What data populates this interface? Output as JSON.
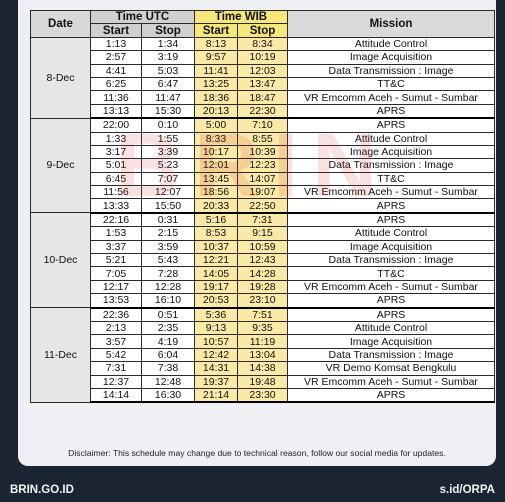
{
  "headers": {
    "date": "Date",
    "time_utc": "Time UTC",
    "time_wib": "Time WIB",
    "mission": "Mission",
    "start": "Start",
    "stop": "Stop"
  },
  "groups": [
    {
      "date": "8-Dec",
      "rows": [
        {
          "utc_start": "1:13",
          "utc_stop": "1:34",
          "wib_start": "8:13",
          "wib_stop": "8:34",
          "mission": "Attitude Control"
        },
        {
          "utc_start": "2:57",
          "utc_stop": "3:19",
          "wib_start": "9:57",
          "wib_stop": "10:19",
          "mission": "Image Acquisition"
        },
        {
          "utc_start": "4:41",
          "utc_stop": "5:03",
          "wib_start": "11:41",
          "wib_stop": "12:03",
          "mission": "Data Transmission : Image"
        },
        {
          "utc_start": "6:25",
          "utc_stop": "6:47",
          "wib_start": "13:25",
          "wib_stop": "13:47",
          "mission": "TT&C"
        },
        {
          "utc_start": "11:36",
          "utc_stop": "11:47",
          "wib_start": "18:36",
          "wib_stop": "18:47",
          "mission": "VR Emcomm Aceh - Sumut - Sumbar"
        },
        {
          "utc_start": "13:13",
          "utc_stop": "15:30",
          "wib_start": "20:13",
          "wib_stop": "22:30",
          "mission": "APRS"
        }
      ]
    },
    {
      "date": "9-Dec",
      "rows": [
        {
          "utc_start": "22:00",
          "utc_stop": "0:10",
          "wib_start": "5:00",
          "wib_stop": "7:10",
          "mission": "APRS"
        },
        {
          "utc_start": "1:33",
          "utc_stop": "1:55",
          "wib_start": "8:33",
          "wib_stop": "8:55",
          "mission": "Attitude Control"
        },
        {
          "utc_start": "3:17",
          "utc_stop": "3:39",
          "wib_start": "10:17",
          "wib_stop": "10:39",
          "mission": "Image Acquisition"
        },
        {
          "utc_start": "5:01",
          "utc_stop": "5:23",
          "wib_start": "12:01",
          "wib_stop": "12:23",
          "mission": "Data Transmission : Image"
        },
        {
          "utc_start": "6:45",
          "utc_stop": "7:07",
          "wib_start": "13:45",
          "wib_stop": "14:07",
          "mission": "TT&C"
        },
        {
          "utc_start": "11:56",
          "utc_stop": "12:07",
          "wib_start": "18:56",
          "wib_stop": "19:07",
          "mission": "VR Emcomm Aceh - Sumut - Sumbar"
        },
        {
          "utc_start": "13:33",
          "utc_stop": "15:50",
          "wib_start": "20:33",
          "wib_stop": "22:50",
          "mission": "APRS"
        }
      ]
    },
    {
      "date": "10-Dec",
      "rows": [
        {
          "utc_start": "22:16",
          "utc_stop": "0:31",
          "wib_start": "5:16",
          "wib_stop": "7:31",
          "mission": "APRS"
        },
        {
          "utc_start": "1:53",
          "utc_stop": "2:15",
          "wib_start": "8:53",
          "wib_stop": "9:15",
          "mission": "Attitude Control"
        },
        {
          "utc_start": "3:37",
          "utc_stop": "3:59",
          "wib_start": "10:37",
          "wib_stop": "10:59",
          "mission": "Image Acquisition"
        },
        {
          "utc_start": "5:21",
          "utc_stop": "5:43",
          "wib_start": "12:21",
          "wib_stop": "12:43",
          "mission": "Data Transmission : Image"
        },
        {
          "utc_start": "7:05",
          "utc_stop": "7:28",
          "wib_start": "14:05",
          "wib_stop": "14:28",
          "mission": "TT&C"
        },
        {
          "utc_start": "12:17",
          "utc_stop": "12:28",
          "wib_start": "19:17",
          "wib_stop": "19:28",
          "mission": "VR Emcomm Aceh - Sumut - Sumbar"
        },
        {
          "utc_start": "13:53",
          "utc_stop": "16:10",
          "wib_start": "20:53",
          "wib_stop": "23:10",
          "mission": "APRS"
        }
      ]
    },
    {
      "date": "11-Dec",
      "rows": [
        {
          "utc_start": "22:36",
          "utc_stop": "0:51",
          "wib_start": "5:36",
          "wib_stop": "7:51",
          "mission": "APRS"
        },
        {
          "utc_start": "2:13",
          "utc_stop": "2:35",
          "wib_start": "9:13",
          "wib_stop": "9:35",
          "mission": "Attitude Control"
        },
        {
          "utc_start": "3:57",
          "utc_stop": "4:19",
          "wib_start": "10:57",
          "wib_stop": "11:19",
          "mission": "Image Acquisition"
        },
        {
          "utc_start": "5:42",
          "utc_stop": "6:04",
          "wib_start": "12:42",
          "wib_stop": "13:04",
          "mission": "Data Transmission : Image"
        },
        {
          "utc_start": "7:31",
          "utc_stop": "7:38",
          "wib_start": "14:31",
          "wib_stop": "14:38",
          "mission": "VR Demo Komsat Bengkulu"
        },
        {
          "utc_start": "12:37",
          "utc_stop": "12:48",
          "wib_start": "19:37",
          "wib_stop": "19:48",
          "mission": "VR Emcomm Aceh - Sumut - Sumbar"
        },
        {
          "utc_start": "14:14",
          "utc_stop": "16:30",
          "wib_start": "21:14",
          "wib_stop": "23:30",
          "mission": "APRS"
        }
      ]
    }
  ],
  "watermark": "BRIN",
  "disclaimer": "Disclaimer: This schedule may change due to technical reason, follow our social media for updates.",
  "footer": {
    "left": "BRIN.GO.ID",
    "right": "s.id/ORPA"
  }
}
